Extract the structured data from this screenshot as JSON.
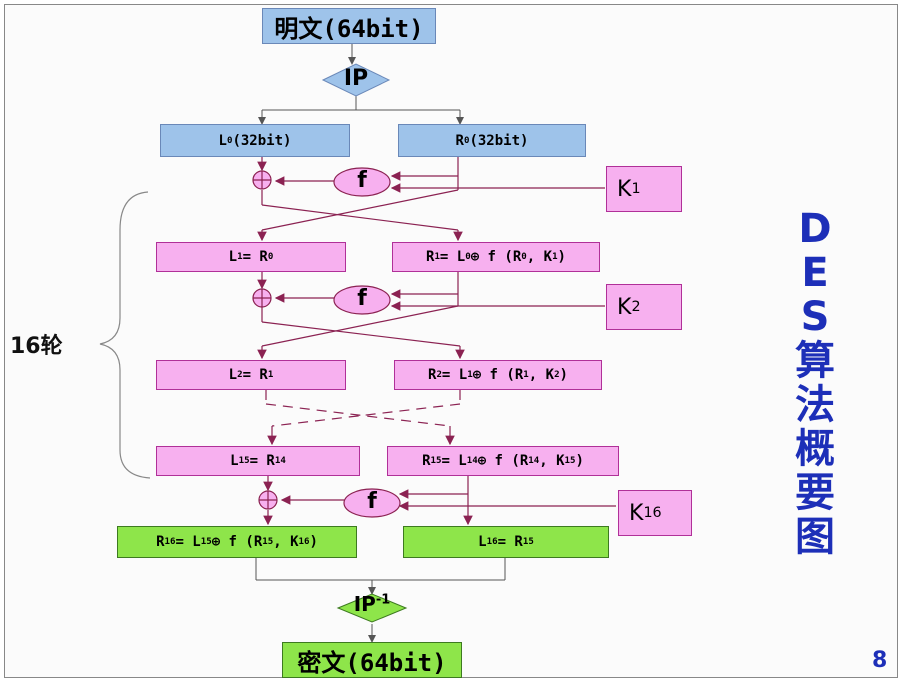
{
  "title": {
    "plaintext": "明文(64bit)",
    "ciphertext": "密文(64bit)"
  },
  "ip": {
    "label": "IP",
    "inv_label": "IP",
    "inv_sup": "-1"
  },
  "side_title": [
    "D",
    "E",
    "S",
    "算",
    "法",
    "概",
    "要",
    "图"
  ],
  "rounds_label": "16轮",
  "page_number": "8",
  "f_label": "f",
  "keys": [
    {
      "base": "K",
      "sub": "1"
    },
    {
      "base": "K",
      "sub": "2"
    },
    {
      "base": "K",
      "sub": "16"
    }
  ],
  "rows": {
    "r0": {
      "left": {
        "parts": [
          {
            "t": "L"
          },
          {
            "sub": "0"
          },
          {
            "t": "(32bit)"
          }
        ]
      },
      "right": {
        "parts": [
          {
            "t": "R"
          },
          {
            "sub": "0"
          },
          {
            "t": "(32bit)"
          }
        ]
      }
    },
    "r1": {
      "left": {
        "parts": [
          {
            "t": "L"
          },
          {
            "sub": "1"
          },
          {
            "t": "= R"
          },
          {
            "sub": "0"
          }
        ]
      },
      "right": {
        "parts": [
          {
            "t": "R"
          },
          {
            "sub": "1"
          },
          {
            "t": "= L"
          },
          {
            "sub": "0"
          },
          {
            "t": " ⊕ f (R"
          },
          {
            "sub": "0"
          },
          {
            "t": " , K"
          },
          {
            "sub": "1"
          },
          {
            "t": ")"
          }
        ]
      }
    },
    "r2": {
      "left": {
        "parts": [
          {
            "t": "L"
          },
          {
            "sub": "2"
          },
          {
            "t": "= R"
          },
          {
            "sub": "1"
          }
        ]
      },
      "right": {
        "parts": [
          {
            "t": "R"
          },
          {
            "sub": "2"
          },
          {
            "t": "= L"
          },
          {
            "sub": "1"
          },
          {
            "t": " ⊕ f (R"
          },
          {
            "sub": "1"
          },
          {
            "t": " , K"
          },
          {
            "sub": "2"
          },
          {
            "t": ")"
          }
        ]
      }
    },
    "r15": {
      "left": {
        "parts": [
          {
            "t": "L"
          },
          {
            "sub": "15"
          },
          {
            "t": " = R"
          },
          {
            "sub": "14"
          }
        ]
      },
      "right": {
        "parts": [
          {
            "t": "R"
          },
          {
            "sub": "15"
          },
          {
            "t": " = L"
          },
          {
            "sub": "14"
          },
          {
            "t": " ⊕ f (R"
          },
          {
            "sub": "14"
          },
          {
            "t": " , K"
          },
          {
            "sub": "15"
          },
          {
            "t": ")"
          }
        ]
      }
    },
    "r16": {
      "left": {
        "parts": [
          {
            "t": "R"
          },
          {
            "sub": "16"
          },
          {
            "t": " = L"
          },
          {
            "sub": "15"
          },
          {
            "t": " ⊕ f (R"
          },
          {
            "sub": "15"
          },
          {
            "t": " , K"
          },
          {
            "sub": "16"
          },
          {
            "t": ")"
          }
        ]
      },
      "right": {
        "parts": [
          {
            "t": "L"
          },
          {
            "sub": "16"
          },
          {
            "t": " = R"
          },
          {
            "sub": "15"
          }
        ]
      }
    }
  },
  "colors": {
    "blue_box": "#9ec3ea",
    "pink_box": "#f7b0ef",
    "green_box": "#8ee54a",
    "line": "#8b2252",
    "title_blue": "#1d2fb8"
  }
}
